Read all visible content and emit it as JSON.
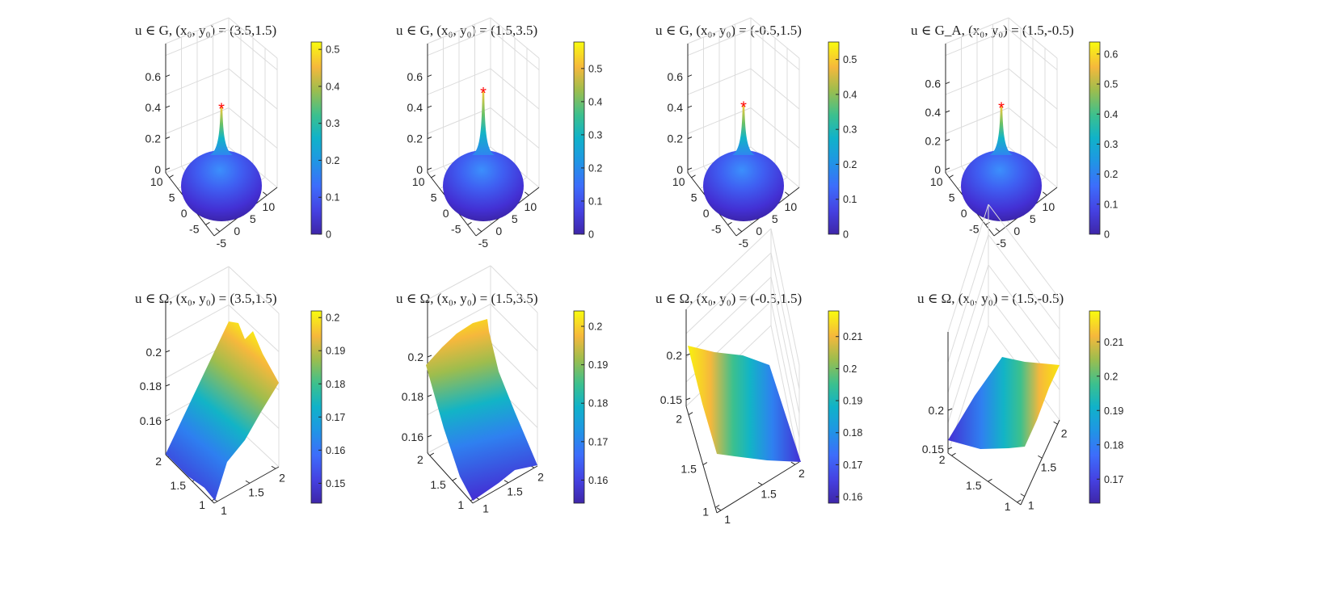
{
  "chart_data": [
    {
      "type": "surface",
      "panel": "G-1",
      "title": "u ∈ G, (x₀, y₀) = (3.5,1.5)",
      "x": [
        -5,
        12
      ],
      "y": [
        -7,
        12
      ],
      "zlim": [
        0,
        0.6
      ],
      "z_ticks": [
        "0",
        "0.2",
        "0.4",
        "0.6"
      ],
      "y_ticks": [
        "10",
        "5",
        "0",
        "-5"
      ],
      "x_ticks": [
        "-5",
        "0",
        "5",
        "10"
      ],
      "peak": 0.42,
      "peak_marker": "*",
      "colorbar": {
        "range": [
          0,
          0.52
        ],
        "ticks": [
          "0",
          "0.1",
          "0.2",
          "0.3",
          "0.4",
          "0.5"
        ]
      }
    },
    {
      "type": "surface",
      "panel": "G-2",
      "title": "u ∈ G, (x₀, y₀) = (1.5,3.5)",
      "x": [
        -5,
        12
      ],
      "y": [
        -7,
        12
      ],
      "zlim": [
        0,
        0.6
      ],
      "z_ticks": [
        "0",
        "0.2",
        "0.4",
        "0.6"
      ],
      "y_ticks": [
        "10",
        "5",
        "0",
        "-5"
      ],
      "x_ticks": [
        "-5",
        "0",
        "5",
        "10"
      ],
      "peak": 0.52,
      "peak_marker": "*",
      "colorbar": {
        "range": [
          0,
          0.58
        ],
        "ticks": [
          "0",
          "0.1",
          "0.2",
          "0.3",
          "0.4",
          "0.5"
        ]
      }
    },
    {
      "type": "surface",
      "panel": "G-3",
      "title": "u ∈ G, (x₀, y₀) = (-0.5,1.5)",
      "x": [
        -5,
        12
      ],
      "y": [
        -7,
        12
      ],
      "zlim": [
        0,
        0.6
      ],
      "z_ticks": [
        "0",
        "0.2",
        "0.4",
        "0.6"
      ],
      "y_ticks": [
        "10",
        "5",
        "0",
        "-5"
      ],
      "x_ticks": [
        "-5",
        "0",
        "5",
        "10"
      ],
      "peak": 0.43,
      "peak_marker": "*",
      "colorbar": {
        "range": [
          0,
          0.55
        ],
        "ticks": [
          "0",
          "0.1",
          "0.2",
          "0.3",
          "0.4",
          "0.5"
        ]
      }
    },
    {
      "type": "surface",
      "panel": "GA-4",
      "title": "u ∈ G_A, (x₀, y₀) = (1.5,-0.5)",
      "x": [
        -5,
        12
      ],
      "y": [
        -7,
        12
      ],
      "zlim": [
        0,
        0.65
      ],
      "z_ticks": [
        "0",
        "0.2",
        "0.4",
        "0.6"
      ],
      "y_ticks": [
        "10",
        "5",
        "0",
        "-5"
      ],
      "x_ticks": [
        "-5",
        "0",
        "5",
        "10"
      ],
      "peak": 0.46,
      "peak_marker": "*",
      "colorbar": {
        "range": [
          0,
          0.64
        ],
        "ticks": [
          "0",
          "0.1",
          "0.2",
          "0.3",
          "0.4",
          "0.5",
          "0.6"
        ]
      }
    },
    {
      "type": "surface",
      "panel": "Omega-1",
      "title": "u ∈ Ω, (x₀, y₀) = (3.5,1.5)",
      "x": [
        1,
        2
      ],
      "y": [
        1,
        2
      ],
      "zlim": [
        0.145,
        0.205
      ],
      "z_ticks": [
        "0.2",
        "0.18",
        "0.16"
      ],
      "y_ticks": [
        "2",
        "1.5",
        "1"
      ],
      "x_ticks": [
        "1",
        "1.5",
        "2"
      ],
      "colorbar": {
        "range": [
          0.144,
          0.202
        ],
        "ticks": [
          "0.15",
          "0.16",
          "0.17",
          "0.18",
          "0.19",
          "0.2"
        ]
      }
    },
    {
      "type": "surface",
      "panel": "Omega-2",
      "title": "u ∈ Ω, (x₀, y₀) = (1.5,3.5)",
      "x": [
        1,
        2
      ],
      "y": [
        1,
        2
      ],
      "zlim": [
        0.155,
        0.205
      ],
      "z_ticks": [
        "0.2",
        "0.18",
        "0.16"
      ],
      "y_ticks": [
        "2",
        "1.5",
        "1"
      ],
      "x_ticks": [
        "1",
        "1.5",
        "2"
      ],
      "colorbar": {
        "range": [
          0.154,
          0.204
        ],
        "ticks": [
          "0.16",
          "0.17",
          "0.18",
          "0.19",
          "0.2"
        ]
      }
    },
    {
      "type": "surface",
      "panel": "Omega-3",
      "title": "u ∈ Ω, (x₀, y₀) = (-0.5,1.5)",
      "x": [
        1,
        2
      ],
      "y": [
        1,
        2
      ],
      "zlim": [
        0.15,
        0.22
      ],
      "z_ticks": [
        "0.2",
        "0.15"
      ],
      "y_ticks": [
        "2",
        "1.5",
        "1"
      ],
      "x_ticks": [
        "1",
        "1.5",
        "2"
      ],
      "colorbar": {
        "range": [
          0.158,
          0.218
        ],
        "ticks": [
          "0.16",
          "0.17",
          "0.18",
          "0.19",
          "0.2",
          "0.21"
        ]
      }
    },
    {
      "type": "surface",
      "panel": "Omega-4",
      "title": "u ∈ Ω, (x₀, y₀) = (1.5,-0.5)",
      "x": [
        1,
        2
      ],
      "y": [
        1,
        2
      ],
      "zlim": [
        0.15,
        0.22
      ],
      "z_ticks": [
        "0.2",
        "0.15"
      ],
      "y_ticks": [
        "2",
        "1.5",
        "1"
      ],
      "x_ticks": [
        "1",
        "1.5",
        "2"
      ],
      "colorbar": {
        "range": [
          0.163,
          0.219
        ],
        "ticks": [
          "0.17",
          "0.18",
          "0.19",
          "0.2",
          "0.21"
        ]
      }
    }
  ],
  "colormap": "parula",
  "colors": {
    "peak_marker": "#ff0000",
    "grid": "#dcdcdc",
    "axis": "#262626"
  }
}
